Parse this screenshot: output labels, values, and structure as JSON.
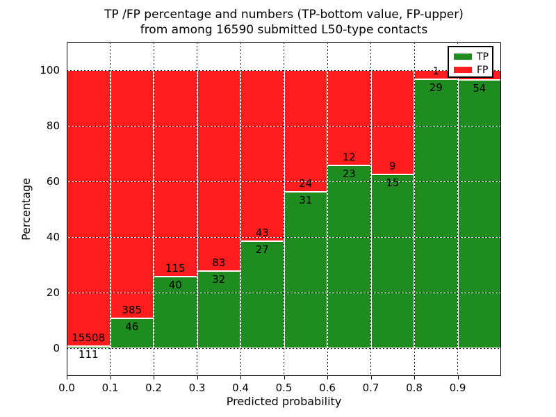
{
  "chart_data": {
    "type": "bar",
    "stacked": true,
    "title_line1": "TP /FP percentage and numbers (TP-bottom value, FP-upper)",
    "title_line2": "from among 16590 submitted L50-type contacts",
    "xlabel": "Predicted probability",
    "ylabel": "Percentage",
    "x_ticks": [
      "0.0",
      "0.1",
      "0.2",
      "0.3",
      "0.4",
      "0.5",
      "0.6",
      "0.7",
      "0.8",
      "0.9"
    ],
    "y_ticks": [
      0,
      20,
      40,
      60,
      80,
      100
    ],
    "ylim": [
      -10,
      110
    ],
    "xlim": [
      0.0,
      1.0
    ],
    "bin_width": 0.1,
    "grid": true,
    "total_contacts": 16590,
    "colors": {
      "tp": "#1e8c1e",
      "fp": "#ff1c1c"
    },
    "legend": {
      "position": "upper right",
      "entries": [
        {
          "label": "TP",
          "color": "#1e8c1e"
        },
        {
          "label": "FP",
          "color": "#ff1c1c"
        }
      ]
    },
    "bars": [
      {
        "x_start": 0.0,
        "tp_count": 111,
        "fp_count": 15508
      },
      {
        "x_start": 0.1,
        "tp_count": 46,
        "fp_count": 385
      },
      {
        "x_start": 0.2,
        "tp_count": 40,
        "fp_count": 115
      },
      {
        "x_start": 0.3,
        "tp_count": 32,
        "fp_count": 83
      },
      {
        "x_start": 0.4,
        "tp_count": 27,
        "fp_count": 43
      },
      {
        "x_start": 0.5,
        "tp_count": 31,
        "fp_count": 24
      },
      {
        "x_start": 0.6,
        "tp_count": 23,
        "fp_count": 12
      },
      {
        "x_start": 0.7,
        "tp_count": 15,
        "fp_count": 9
      },
      {
        "x_start": 0.8,
        "tp_count": 29,
        "fp_count": 1
      },
      {
        "x_start": 0.9,
        "tp_count": 54,
        "fp_count": 2,
        "fp_label_visible": false
      }
    ]
  }
}
